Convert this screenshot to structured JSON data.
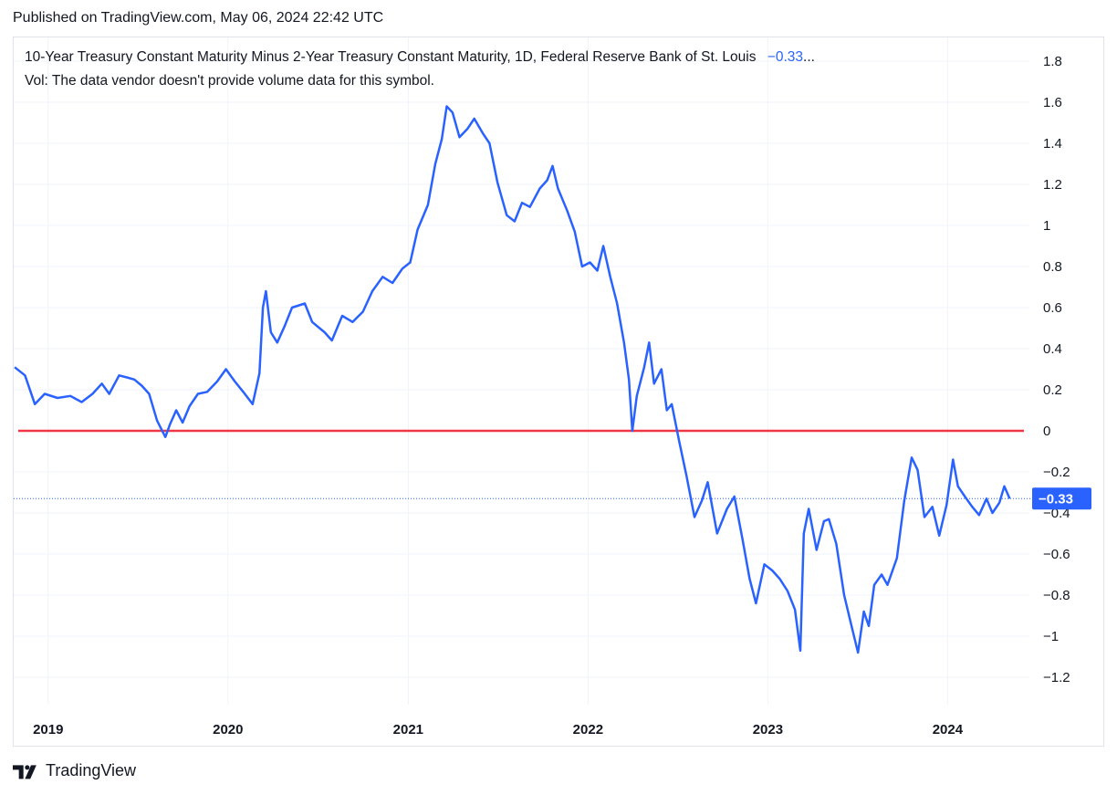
{
  "header": {
    "published": "Published on TradingView.com, May 06, 2024 22:42 UTC"
  },
  "legend": {
    "title": "10-Year Treasury Constant Maturity Minus 2-Year Treasury Constant Maturity, 1D, Federal Reserve Bank of St. Louis",
    "value": "−0.33",
    "ellipsis": "...",
    "volume_note": "Vol: The data vendor doesn't provide volume data for this symbol."
  },
  "brand": {
    "name": "TradingView",
    "logo_icon": "tradingview-logo-icon"
  },
  "colors": {
    "series": "#2962ff",
    "zero_line": "#f23645",
    "grid": "#f0f3fa",
    "price_label": "#2962ff"
  },
  "chart_data": {
    "type": "line",
    "title": "10-Year Treasury Constant Maturity Minus 2-Year Treasury Constant Maturity, 1D, Federal Reserve Bank of St. Louis",
    "xlabel": "",
    "ylabel": "",
    "x_ticks": [
      "2019",
      "2020",
      "2021",
      "2022",
      "2023",
      "2024"
    ],
    "y_ticks": [
      1.8,
      1.6,
      1.4,
      1.2,
      1,
      0.8,
      0.6,
      0.4,
      0.2,
      0,
      -0.2,
      -0.4,
      -0.6,
      -0.8,
      -1,
      -1.2
    ],
    "y_tick_labels": [
      "1.8",
      "1.6",
      "1.4",
      "1.2",
      "1",
      "0.8",
      "0.6",
      "0.4",
      "0.2",
      "0",
      "−0.2",
      "−0.4",
      "−0.6",
      "−0.8",
      "−1",
      "−1.2"
    ],
    "ylim": [
      -1.3,
      1.9
    ],
    "xlim": [
      "2018-10-23",
      "2024-06-15"
    ],
    "grid": true,
    "last_value": -0.33,
    "last_value_label": "−0.33",
    "reference_lines": [
      {
        "y": 0,
        "color": "#f23645"
      }
    ],
    "series": [
      {
        "values": [
          [
            "2018-10-25",
            0.31
          ],
          [
            "2018-11-15",
            0.27
          ],
          [
            "2018-12-05",
            0.13
          ],
          [
            "2018-12-25",
            0.18
          ],
          [
            "2019-01-20",
            0.16
          ],
          [
            "2019-02-15",
            0.17
          ],
          [
            "2019-03-10",
            0.14
          ],
          [
            "2019-04-01",
            0.18
          ],
          [
            "2019-04-20",
            0.23
          ],
          [
            "2019-05-05",
            0.18
          ],
          [
            "2019-05-25",
            0.27
          ],
          [
            "2019-06-10",
            0.26
          ],
          [
            "2019-06-25",
            0.25
          ],
          [
            "2019-07-10",
            0.22
          ],
          [
            "2019-07-25",
            0.18
          ],
          [
            "2019-08-10",
            0.05
          ],
          [
            "2019-08-27",
            -0.03
          ],
          [
            "2019-09-05",
            0.03
          ],
          [
            "2019-09-18",
            0.1
          ],
          [
            "2019-10-01",
            0.04
          ],
          [
            "2019-10-15",
            0.12
          ],
          [
            "2019-11-01",
            0.18
          ],
          [
            "2019-11-20",
            0.19
          ],
          [
            "2019-12-10",
            0.24
          ],
          [
            "2019-12-28",
            0.3
          ],
          [
            "2020-01-15",
            0.24
          ],
          [
            "2020-02-01",
            0.19
          ],
          [
            "2020-02-20",
            0.13
          ],
          [
            "2020-03-05",
            0.28
          ],
          [
            "2020-03-12",
            0.6
          ],
          [
            "2020-03-18",
            0.68
          ],
          [
            "2020-03-28",
            0.48
          ],
          [
            "2020-04-10",
            0.43
          ],
          [
            "2020-04-25",
            0.51
          ],
          [
            "2020-05-10",
            0.6
          ],
          [
            "2020-06-05",
            0.62
          ],
          [
            "2020-06-20",
            0.53
          ],
          [
            "2020-07-15",
            0.48
          ],
          [
            "2020-07-30",
            0.44
          ],
          [
            "2020-08-20",
            0.56
          ],
          [
            "2020-09-10",
            0.53
          ],
          [
            "2020-10-01",
            0.58
          ],
          [
            "2020-10-20",
            0.68
          ],
          [
            "2020-11-10",
            0.75
          ],
          [
            "2020-11-30",
            0.72
          ],
          [
            "2020-12-20",
            0.79
          ],
          [
            "2021-01-05",
            0.82
          ],
          [
            "2021-01-20",
            0.98
          ],
          [
            "2021-02-10",
            1.1
          ],
          [
            "2021-02-25",
            1.3
          ],
          [
            "2021-03-10",
            1.42
          ],
          [
            "2021-03-20",
            1.58
          ],
          [
            "2021-04-01",
            1.55
          ],
          [
            "2021-04-15",
            1.43
          ],
          [
            "2021-05-01",
            1.47
          ],
          [
            "2021-05-15",
            1.52
          ],
          [
            "2021-06-01",
            1.45
          ],
          [
            "2021-06-15",
            1.4
          ],
          [
            "2021-07-01",
            1.21
          ],
          [
            "2021-07-20",
            1.05
          ],
          [
            "2021-08-05",
            1.02
          ],
          [
            "2021-08-20",
            1.11
          ],
          [
            "2021-09-05",
            1.09
          ],
          [
            "2021-09-25",
            1.18
          ],
          [
            "2021-10-10",
            1.22
          ],
          [
            "2021-10-21",
            1.29
          ],
          [
            "2021-11-01",
            1.18
          ],
          [
            "2021-11-20",
            1.07
          ],
          [
            "2021-12-05",
            0.97
          ],
          [
            "2021-12-20",
            0.8
          ],
          [
            "2022-01-05",
            0.82
          ],
          [
            "2022-01-20",
            0.78
          ],
          [
            "2022-02-01",
            0.9
          ],
          [
            "2022-02-15",
            0.75
          ],
          [
            "2022-03-01",
            0.62
          ],
          [
            "2022-03-15",
            0.43
          ],
          [
            "2022-03-25",
            0.25
          ],
          [
            "2022-04-01",
            0.0
          ],
          [
            "2022-04-10",
            0.17
          ],
          [
            "2022-04-25",
            0.31
          ],
          [
            "2022-05-05",
            0.43
          ],
          [
            "2022-05-15",
            0.23
          ],
          [
            "2022-05-30",
            0.3
          ],
          [
            "2022-06-10",
            0.1
          ],
          [
            "2022-06-20",
            0.13
          ],
          [
            "2022-07-05",
            -0.05
          ],
          [
            "2022-07-20",
            -0.22
          ],
          [
            "2022-08-05",
            -0.42
          ],
          [
            "2022-08-20",
            -0.34
          ],
          [
            "2022-09-01",
            -0.25
          ],
          [
            "2022-09-20",
            -0.5
          ],
          [
            "2022-10-10",
            -0.38
          ],
          [
            "2022-10-25",
            -0.32
          ],
          [
            "2022-11-10",
            -0.52
          ],
          [
            "2022-11-25",
            -0.72
          ],
          [
            "2022-12-08",
            -0.84
          ],
          [
            "2022-12-25",
            -0.65
          ],
          [
            "2023-01-10",
            -0.68
          ],
          [
            "2023-01-25",
            -0.72
          ],
          [
            "2023-02-10",
            -0.78
          ],
          [
            "2023-02-25",
            -0.87
          ],
          [
            "2023-03-08",
            -1.07
          ],
          [
            "2023-03-15",
            -0.5
          ],
          [
            "2023-03-25",
            -0.38
          ],
          [
            "2023-04-10",
            -0.58
          ],
          [
            "2023-04-25",
            -0.44
          ],
          [
            "2023-05-05",
            -0.43
          ],
          [
            "2023-05-20",
            -0.55
          ],
          [
            "2023-06-05",
            -0.8
          ],
          [
            "2023-06-20",
            -0.95
          ],
          [
            "2023-07-03",
            -1.08
          ],
          [
            "2023-07-15",
            -0.88
          ],
          [
            "2023-07-25",
            -0.95
          ],
          [
            "2023-08-05",
            -0.75
          ],
          [
            "2023-08-20",
            -0.7
          ],
          [
            "2023-09-01",
            -0.75
          ],
          [
            "2023-09-20",
            -0.62
          ],
          [
            "2023-10-05",
            -0.34
          ],
          [
            "2023-10-20",
            -0.13
          ],
          [
            "2023-11-01",
            -0.19
          ],
          [
            "2023-11-15",
            -0.42
          ],
          [
            "2023-12-01",
            -0.37
          ],
          [
            "2023-12-15",
            -0.51
          ],
          [
            "2023-12-30",
            -0.36
          ],
          [
            "2024-01-12",
            -0.14
          ],
          [
            "2024-01-22",
            -0.27
          ],
          [
            "2024-02-05",
            -0.32
          ],
          [
            "2024-02-20",
            -0.37
          ],
          [
            "2024-03-05",
            -0.41
          ],
          [
            "2024-03-20",
            -0.33
          ],
          [
            "2024-04-01",
            -0.4
          ],
          [
            "2024-04-15",
            -0.35
          ],
          [
            "2024-04-25",
            -0.27
          ],
          [
            "2024-05-06",
            -0.33
          ]
        ]
      }
    ]
  }
}
